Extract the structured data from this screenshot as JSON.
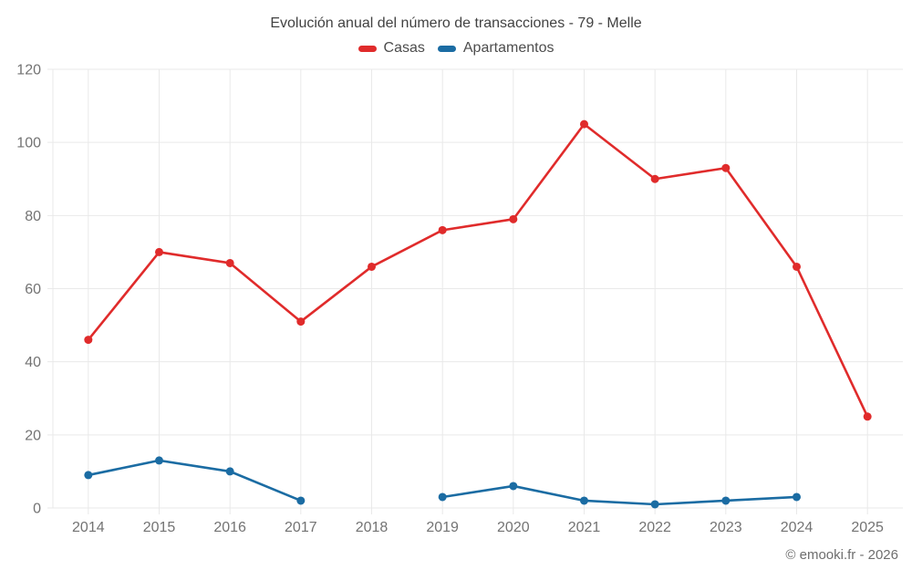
{
  "title": "Evolución anual del número de transacciones - 79 - Melle",
  "footer": "© emooki.fr - 2026",
  "colors": {
    "casas": "#e02b2b",
    "apartamentos": "#1b6ca3",
    "grid": "#e9e9e9",
    "tick_text": "#737373",
    "title_text": "#424242"
  },
  "chart_data": {
    "type": "line",
    "title": "Evolución anual del número de transacciones - 79 - Melle",
    "categories": [
      "2014",
      "2015",
      "2016",
      "2017",
      "2018",
      "2019",
      "2020",
      "2021",
      "2022",
      "2023",
      "2024",
      "2025"
    ],
    "series": [
      {
        "name": "Casas",
        "color": "#e02b2b",
        "values": [
          46,
          70,
          67,
          51,
          66,
          76,
          79,
          105,
          90,
          93,
          66,
          25
        ]
      },
      {
        "name": "Apartamentos",
        "color": "#1b6ca3",
        "values": [
          9,
          13,
          10,
          2,
          null,
          3,
          6,
          2,
          1,
          2,
          3,
          null
        ]
      }
    ],
    "xlabel": "",
    "ylabel": "",
    "ylim": [
      0,
      120
    ],
    "yticks": [
      0,
      20,
      40,
      60,
      80,
      100,
      120
    ],
    "grid": true,
    "legend_position": "top"
  }
}
